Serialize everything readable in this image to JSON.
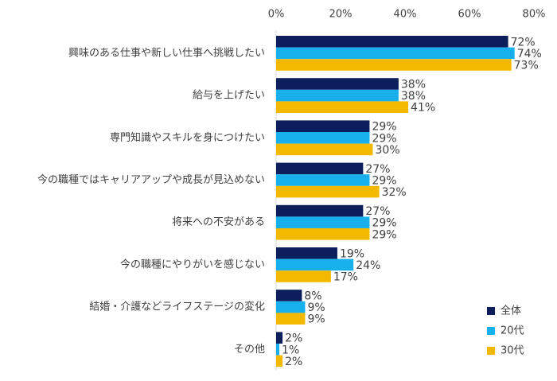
{
  "chart_data": {
    "type": "hbar",
    "categories": [
      "興味のある仕事や新しい仕事へ挑戦したい",
      "給与を上げたい",
      "専門知識やスキルを身につけたい",
      "今の職種ではキャリアアップや成長が見込めない",
      "将来への不安がある",
      "今の職種にやりがいを感じない",
      "結婚・介護などライフステージの変化",
      "その他"
    ],
    "series": [
      {
        "name": "全体",
        "color": "#0c1f5c",
        "values": [
          72,
          38,
          29,
          27,
          27,
          19,
          8,
          2
        ],
        "value_labels": [
          "72%",
          "38%",
          "29%",
          "27%",
          "27%",
          "19%",
          "8%",
          "2%"
        ]
      },
      {
        "name": "20代",
        "color": "#17b0ec",
        "values": [
          74,
          38,
          29,
          29,
          29,
          24,
          9,
          1
        ],
        "value_labels": [
          "74%",
          "38%",
          "29%",
          "29%",
          "29%",
          "24%",
          "9%",
          "1%"
        ]
      },
      {
        "name": "30代",
        "color": "#f2b900",
        "values": [
          73,
          41,
          30,
          32,
          29,
          17,
          9,
          2
        ],
        "value_labels": [
          "73%",
          "41%",
          "30%",
          "32%",
          "29%",
          "17%",
          "9%",
          "2%"
        ]
      }
    ],
    "xlim": [
      0,
      80
    ],
    "xticks": [
      {
        "value": 0,
        "label": "0%"
      },
      {
        "value": 20,
        "label": "20%"
      },
      {
        "value": 40,
        "label": "40%"
      },
      {
        "value": 60,
        "label": "60%"
      },
      {
        "value": 80,
        "label": "80%"
      }
    ],
    "grid": false,
    "legend": "bottom-right"
  }
}
